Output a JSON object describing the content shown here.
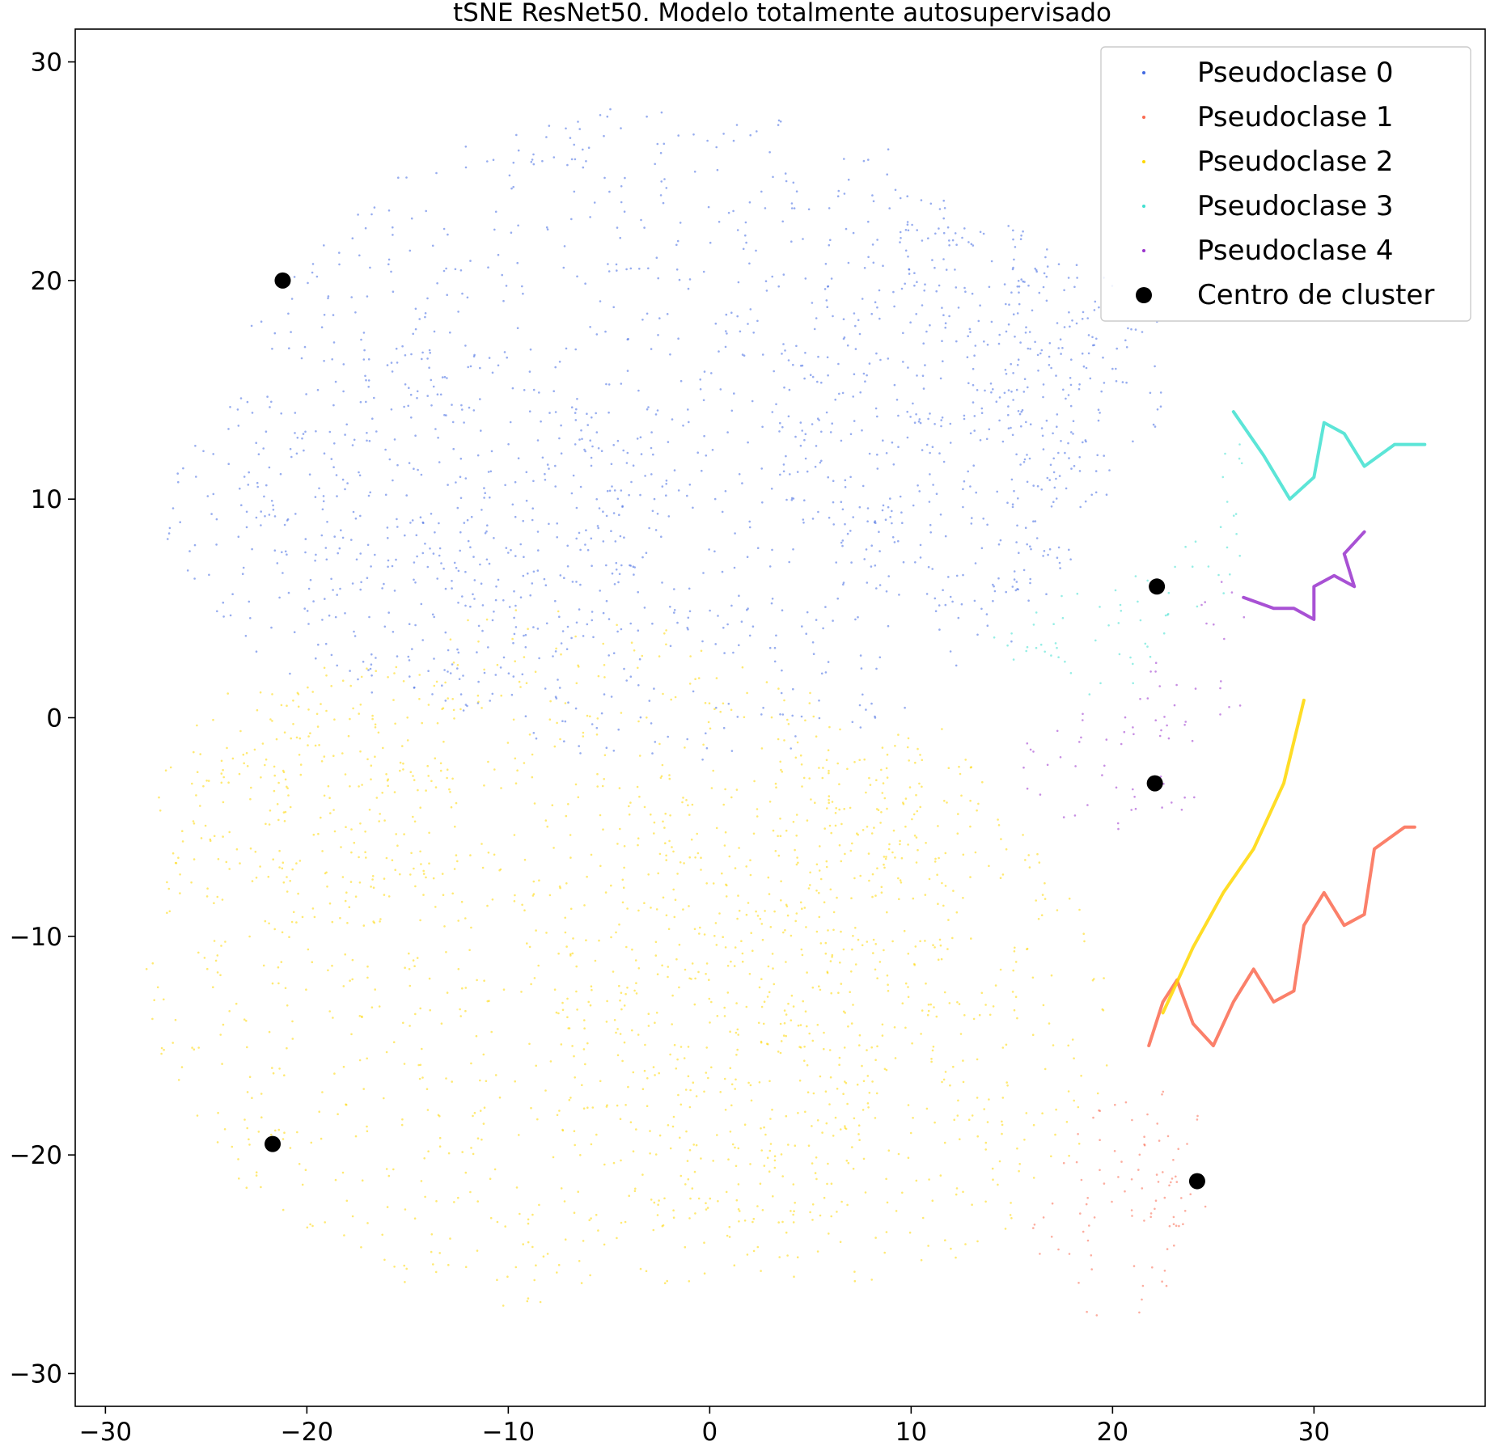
{
  "chart_data": {
    "type": "scatter",
    "title": "tSNE ResNet50. Modelo totalmente autosupervisado",
    "xlabel": "",
    "ylabel": "",
    "xlim": [
      -31.5,
      38.5
    ],
    "ylim": [
      -31.5,
      31.5
    ],
    "xticks": [
      -30,
      -20,
      -10,
      0,
      10,
      20,
      30
    ],
    "yticks": [
      -30,
      -20,
      -10,
      0,
      10,
      20,
      30
    ],
    "xtick_labels": [
      "−30",
      "−20",
      "−10",
      "0",
      "10",
      "20",
      "30"
    ],
    "ytick_labels": [
      "−30",
      "−20",
      "−10",
      "0",
      "10",
      "20",
      "30"
    ],
    "grid": false,
    "legend_position": "top-right",
    "series": [
      {
        "name": "Pseudoclase 0",
        "color": "#4169e1",
        "regions": [
          {
            "center": [
              -2,
              13
            ],
            "radius": [
              22,
              15
            ]
          },
          {
            "center": [
              -15,
              9
            ],
            "radius": [
              12,
              8
            ]
          },
          {
            "center": [
              12,
              14
            ],
            "radius": [
              9,
              9
            ]
          },
          {
            "center": [
              18,
              16
            ],
            "radius": [
              5,
              5
            ]
          }
        ]
      },
      {
        "name": "Pseudoclase 1",
        "color": "#fa6a50",
        "regions": [
          {
            "center": [
              20,
              -22.5
            ],
            "radius": [
              4,
              5
            ]
          },
          {
            "center": [
              22.5,
              -20.5
            ],
            "radius": [
              2.5,
              3.5
            ]
          }
        ],
        "curves": [
          {
            "points": [
              [
                21.8,
                -15
              ],
              [
                22.5,
                -13
              ],
              [
                23.2,
                -12
              ],
              [
                24,
                -14
              ],
              [
                25,
                -15
              ],
              [
                26,
                -13
              ],
              [
                27,
                -11.5
              ],
              [
                28,
                -13
              ],
              [
                29,
                -12.5
              ],
              [
                29.5,
                -9.5
              ],
              [
                30.5,
                -8
              ],
              [
                31.5,
                -9.5
              ],
              [
                32.5,
                -9
              ],
              [
                33,
                -6
              ],
              [
                34.5,
                -5
              ],
              [
                35,
                -5
              ]
            ]
          }
        ]
      },
      {
        "name": "Pseudoclase 2",
        "color": "#ffd700",
        "regions": [
          {
            "center": [
              -8,
              -11
            ],
            "radius": [
              20,
              16
            ]
          },
          {
            "center": [
              6,
              -14
            ],
            "radius": [
              14,
              12
            ]
          },
          {
            "center": [
              9,
              -3
            ],
            "radius": [
              5,
              3
            ]
          },
          {
            "center": [
              -20,
              -4
            ],
            "radius": [
              8,
              6
            ]
          }
        ],
        "curves": [
          {
            "points": [
              [
                29.5,
                0.8
              ],
              [
                28.5,
                -3
              ],
              [
                27,
                -6
              ],
              [
                25.5,
                -8
              ],
              [
                24,
                -10.5
              ],
              [
                22.5,
                -13.5
              ]
            ]
          }
        ]
      },
      {
        "name": "Pseudoclase 3",
        "color": "#40e0d0",
        "regions": [
          {
            "center": [
              18.5,
              3.5
            ],
            "radius": [
              5,
              2.5
            ]
          },
          {
            "center": [
              23.5,
              6.5
            ],
            "radius": [
              2.5,
              2
            ]
          },
          {
            "center": [
              26,
              10
            ],
            "radius": [
              1.3,
              3
            ]
          }
        ],
        "curves": [
          {
            "points": [
              [
                26,
                14
              ],
              [
                27.5,
                12
              ],
              [
                28.8,
                10
              ],
              [
                30,
                11
              ],
              [
                30.5,
                13.5
              ],
              [
                31.5,
                13
              ],
              [
                32.5,
                11.5
              ],
              [
                34,
                12.5
              ],
              [
                35.5,
                12.5
              ]
            ]
          }
        ]
      },
      {
        "name": "Pseudoclase 4",
        "color": "#9932cc",
        "regions": [
          {
            "center": [
              20,
              -2.5
            ],
            "radius": [
              5,
              2.8
            ]
          },
          {
            "center": [
              24,
              1
            ],
            "radius": [
              3,
              2
            ]
          },
          {
            "center": [
              25.5,
              4.5
            ],
            "radius": [
              1.3,
              2
            ]
          }
        ],
        "curves": [
          {
            "points": [
              [
                26.5,
                5.5
              ],
              [
                28,
                5
              ],
              [
                29,
                5
              ],
              [
                30,
                4.5
              ],
              [
                30,
                6
              ],
              [
                31,
                6.5
              ],
              [
                32,
                6
              ],
              [
                31.5,
                7.5
              ],
              [
                32.5,
                8.5
              ]
            ]
          }
        ]
      }
    ],
    "centers": {
      "name": "Centro de cluster",
      "color": "#000000",
      "points": [
        [
          -21.2,
          20
        ],
        [
          -21.7,
          -19.5
        ],
        [
          22.2,
          6
        ],
        [
          22.1,
          -3
        ],
        [
          24.2,
          -21.2
        ]
      ]
    }
  }
}
